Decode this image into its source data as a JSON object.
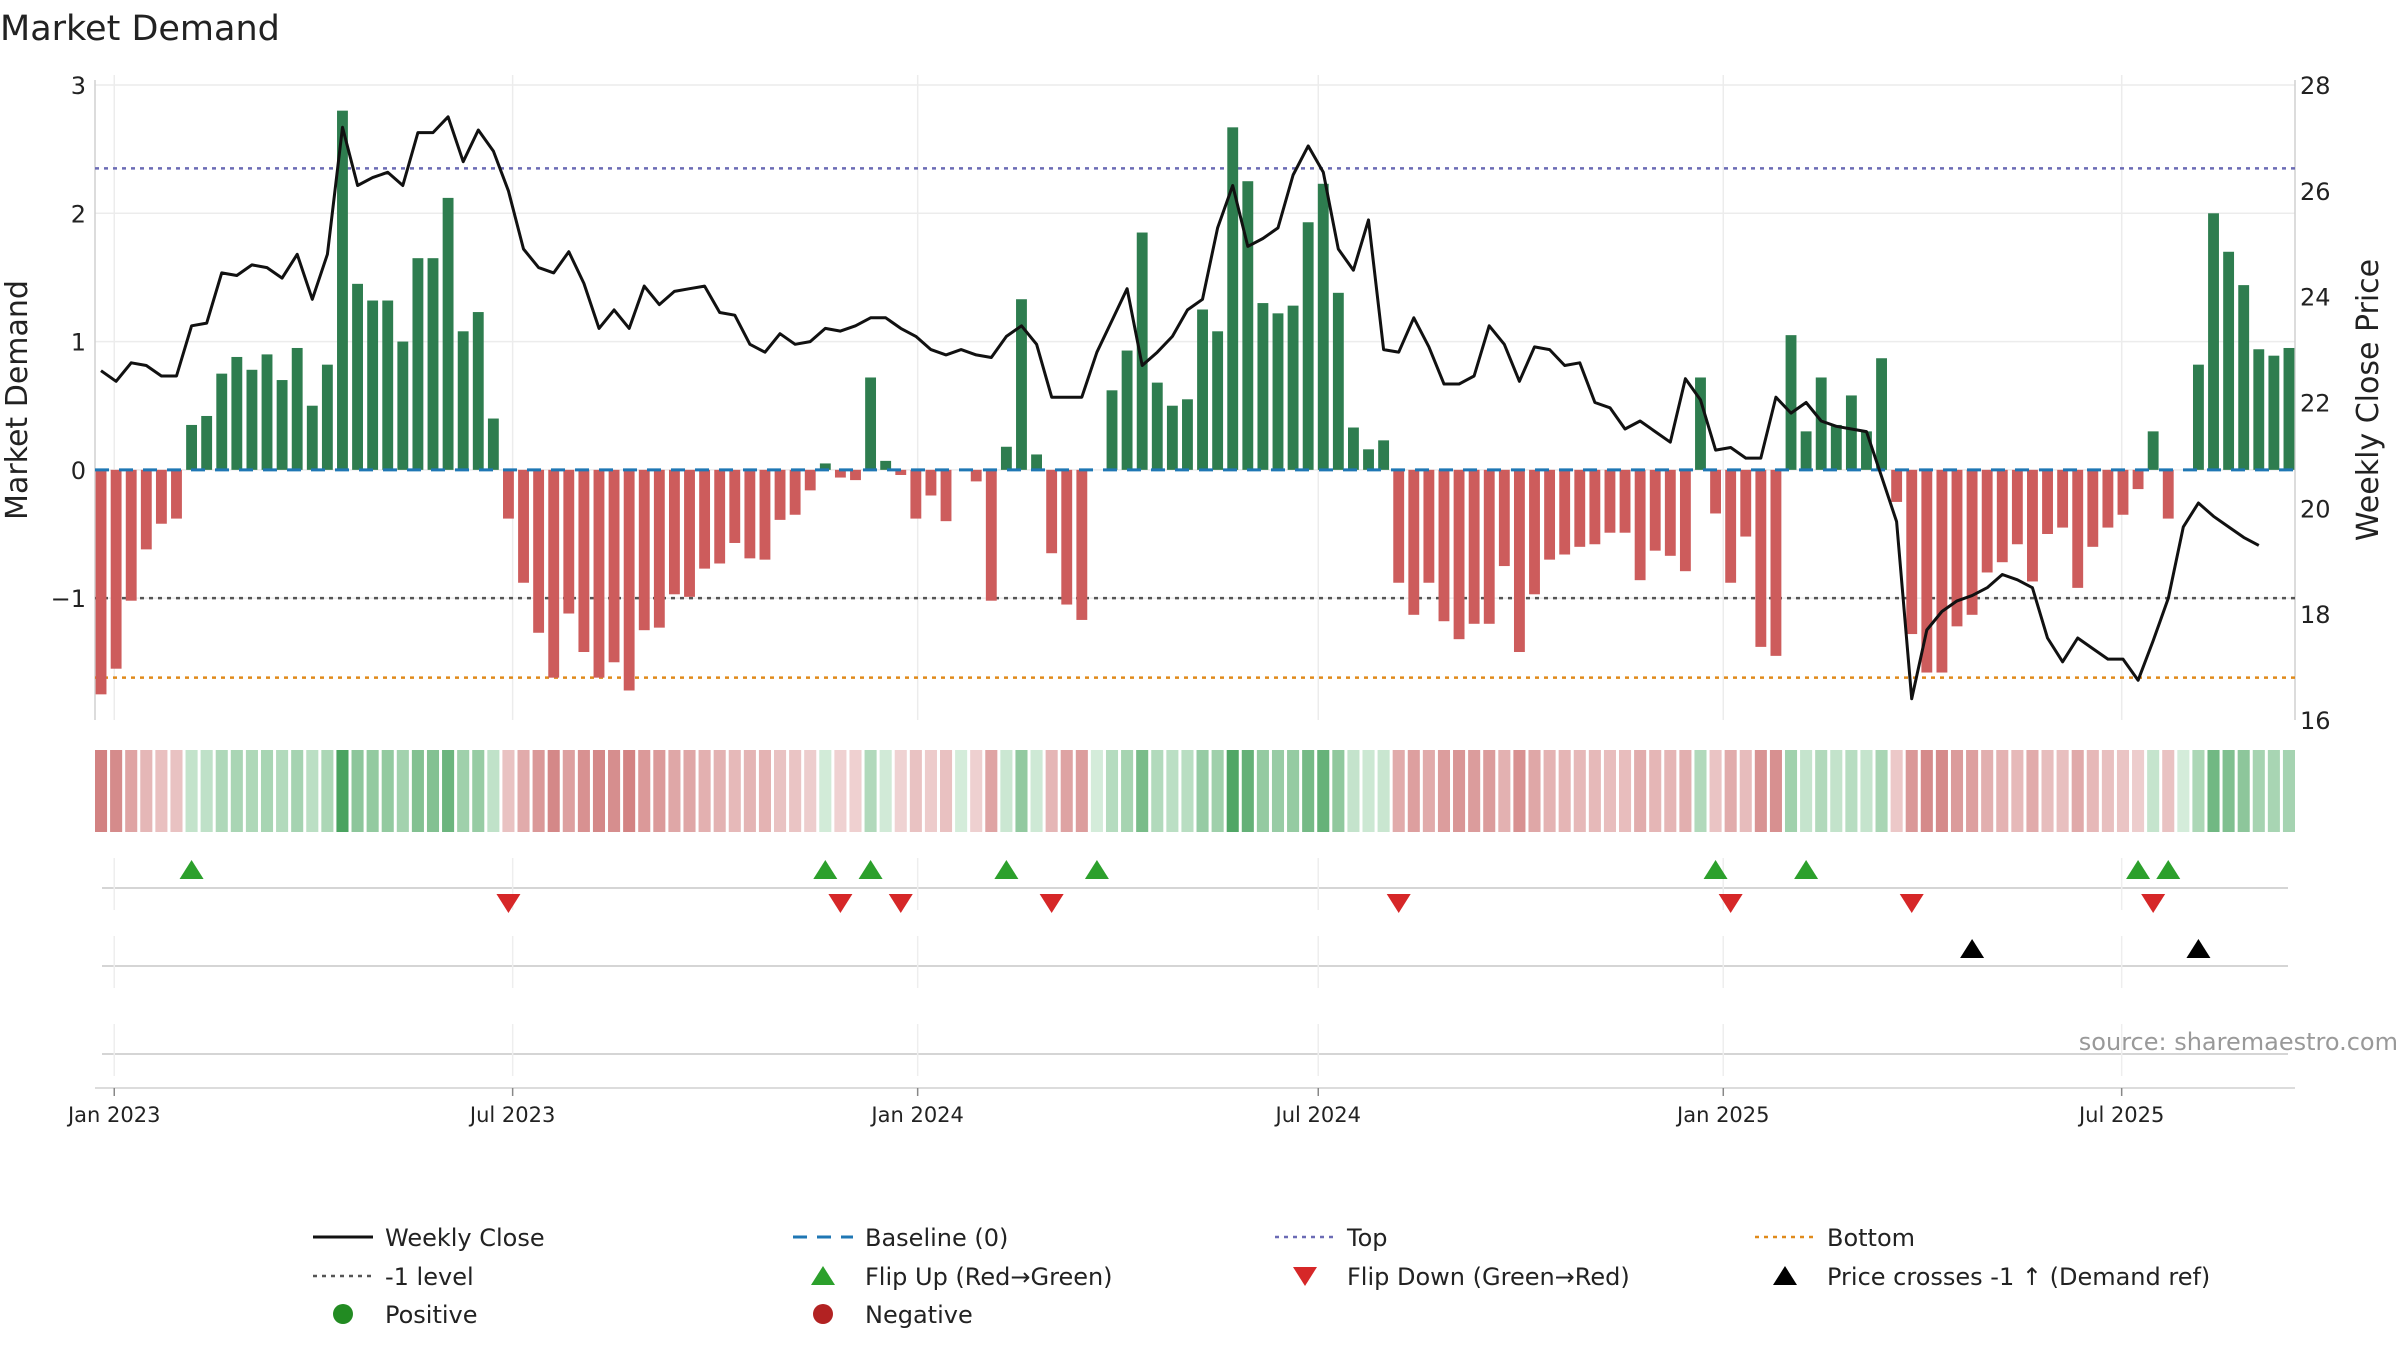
{
  "chart_data": {
    "type": "bar",
    "title": "Market Demand",
    "ylabel_left": "Market Demand",
    "ylabel_right": "Weekly Close Price",
    "source": "source: sharemaestro.com",
    "ylim_left": [
      -1.95,
      3.0
    ],
    "ylim_right": [
      16,
      28
    ],
    "yticks_left": [
      -1,
      0,
      1,
      2,
      3
    ],
    "yticks_left_labels": [
      "−1",
      "0",
      "1",
      "2",
      "3"
    ],
    "yticks_right": [
      16,
      18,
      20,
      22,
      24,
      26,
      28
    ],
    "x_start": "2022-12-26",
    "x_end": "2025-09-15",
    "x_ticks": [
      {
        "date": "2023-01-01",
        "label": "Jan 2023"
      },
      {
        "date": "2023-07-01",
        "label": "Jul 2023"
      },
      {
        "date": "2024-01-01",
        "label": "Jan 2024"
      },
      {
        "date": "2024-07-01",
        "label": "Jul 2024"
      },
      {
        "date": "2025-01-01",
        "label": "Jan 2025"
      },
      {
        "date": "2025-07-01",
        "label": "Jul 2025"
      }
    ],
    "reference_lines": {
      "baseline": 0,
      "top": 2.35,
      "minus_one": -1,
      "bottom": -1.62
    },
    "demand": [
      -1.75,
      -1.55,
      -1.02,
      -0.62,
      -0.42,
      -0.38,
      0.35,
      0.42,
      0.75,
      0.88,
      0.78,
      0.9,
      0.7,
      0.95,
      0.5,
      0.82,
      2.8,
      1.45,
      1.32,
      1.32,
      1.0,
      1.65,
      1.65,
      2.12,
      1.08,
      1.23,
      0.4,
      -0.38,
      -0.88,
      -1.27,
      -1.62,
      -1.12,
      -1.42,
      -1.62,
      -1.5,
      -1.72,
      -1.25,
      -1.23,
      -0.97,
      -0.99,
      -0.77,
      -0.73,
      -0.57,
      -0.69,
      -0.7,
      -0.39,
      -0.35,
      -0.16,
      0.05,
      -0.06,
      -0.08,
      0.72,
      0.07,
      -0.04,
      -0.38,
      -0.2,
      -0.4,
      0.0,
      -0.09,
      -1.02,
      0.18,
      1.33,
      0.12,
      -0.65,
      -1.05,
      -1.17,
      0.0,
      0.62,
      0.93,
      1.85,
      0.68,
      0.5,
      0.55,
      1.25,
      1.08,
      2.67,
      2.25,
      1.3,
      1.22,
      1.28,
      1.93,
      2.23,
      1.38,
      0.33,
      0.16,
      0.23,
      -0.88,
      -1.13,
      -0.88,
      -1.18,
      -1.32,
      -1.2,
      -1.2,
      -0.75,
      -1.42,
      -0.97,
      -0.7,
      -0.66,
      -0.6,
      -0.58,
      -0.49,
      -0.49,
      -0.86,
      -0.63,
      -0.67,
      -0.79,
      0.72,
      -0.34,
      -0.88,
      -0.52,
      -1.38,
      -1.45,
      1.05,
      0.3,
      0.72,
      0.35,
      0.58,
      0.3,
      0.87,
      -0.25,
      -1.28,
      -1.58,
      -1.58,
      -1.22,
      -1.13,
      -0.8,
      -0.72,
      -0.58,
      -0.87,
      -0.5,
      -0.45,
      -0.92,
      -0.6,
      -0.45,
      -0.35,
      -0.15,
      0.3,
      -0.38,
      0.0,
      0.82,
      2.0,
      1.7,
      1.44,
      0.94,
      0.89,
      0.95
    ],
    "weekly_close": [
      22.6,
      22.4,
      22.75,
      22.7,
      22.5,
      22.5,
      23.45,
      23.5,
      24.45,
      24.4,
      24.6,
      24.55,
      24.35,
      24.8,
      23.95,
      24.8,
      27.2,
      26.1,
      26.25,
      26.35,
      26.1,
      27.1,
      27.1,
      27.4,
      26.55,
      27.15,
      26.75,
      26.0,
      24.9,
      24.55,
      24.45,
      24.85,
      24.25,
      23.4,
      23.75,
      23.4,
      24.2,
      23.85,
      24.1,
      24.15,
      24.2,
      23.7,
      23.65,
      23.1,
      22.95,
      23.3,
      23.1,
      23.15,
      23.4,
      23.35,
      23.45,
      23.6,
      23.6,
      23.4,
      23.25,
      23.0,
      22.9,
      23.0,
      22.9,
      22.85,
      23.25,
      23.45,
      23.1,
      22.1,
      22.1,
      22.1,
      22.95,
      23.55,
      24.15,
      22.7,
      22.95,
      23.25,
      23.75,
      23.95,
      25.3,
      26.1,
      24.95,
      25.1,
      25.3,
      26.3,
      26.85,
      26.35,
      24.9,
      24.5,
      25.45,
      23.0,
      22.95,
      23.6,
      23.05,
      22.35,
      22.35,
      22.5,
      23.45,
      23.1,
      22.4,
      23.05,
      23.0,
      22.7,
      22.75,
      22.0,
      21.9,
      21.5,
      21.65,
      21.45,
      21.25,
      22.45,
      22.05,
      21.1,
      21.15,
      20.95,
      20.95,
      22.1,
      21.8,
      22.0,
      21.65,
      21.55,
      21.5,
      21.45,
      20.6,
      19.75,
      16.4,
      17.7,
      18.05,
      18.25,
      18.35,
      18.5,
      18.75,
      18.65,
      18.5,
      17.55,
      17.1,
      17.55,
      17.35,
      17.15,
      17.15,
      16.75,
      17.5,
      18.3,
      19.65,
      20.1,
      19.85,
      19.65,
      19.45,
      19.3
    ],
    "flip_up_weeks": [
      6,
      48,
      51,
      60,
      66,
      107,
      113,
      135,
      137
    ],
    "flip_down_weeks": [
      27,
      49,
      53,
      63,
      86,
      108,
      120,
      136
    ],
    "price_cross_weeks": [
      124,
      139
    ],
    "legend": [
      {
        "key": "weekly_close",
        "label": "Weekly Close"
      },
      {
        "key": "baseline",
        "label": "Baseline (0)"
      },
      {
        "key": "top",
        "label": "Top"
      },
      {
        "key": "bottom",
        "label": "Bottom"
      },
      {
        "key": "minus_one",
        "label": "-1 level"
      },
      {
        "key": "flip_up",
        "label": "Flip Up (Red→Green)"
      },
      {
        "key": "flip_down",
        "label": "Flip Down (Green→Red)"
      },
      {
        "key": "price_cross",
        "label": "Price crosses -1 ↑ (Demand ref)"
      },
      {
        "key": "positive",
        "label": "Positive"
      },
      {
        "key": "negative",
        "label": "Negative"
      }
    ]
  },
  "colors": {
    "positive_bar": "#2e7d4f",
    "negative_bar": "#cd5c5c",
    "price_line": "#111111",
    "baseline": "#1f77b4",
    "top": "#6b6bb5",
    "minus_one": "#555555",
    "bottom": "#e08a1a",
    "flip_up": "#2ca02c",
    "flip_down": "#d62728",
    "price_cross": "#000000",
    "positive_dot": "#228b22",
    "negative_dot": "#b22222",
    "grid": "#ececec"
  }
}
